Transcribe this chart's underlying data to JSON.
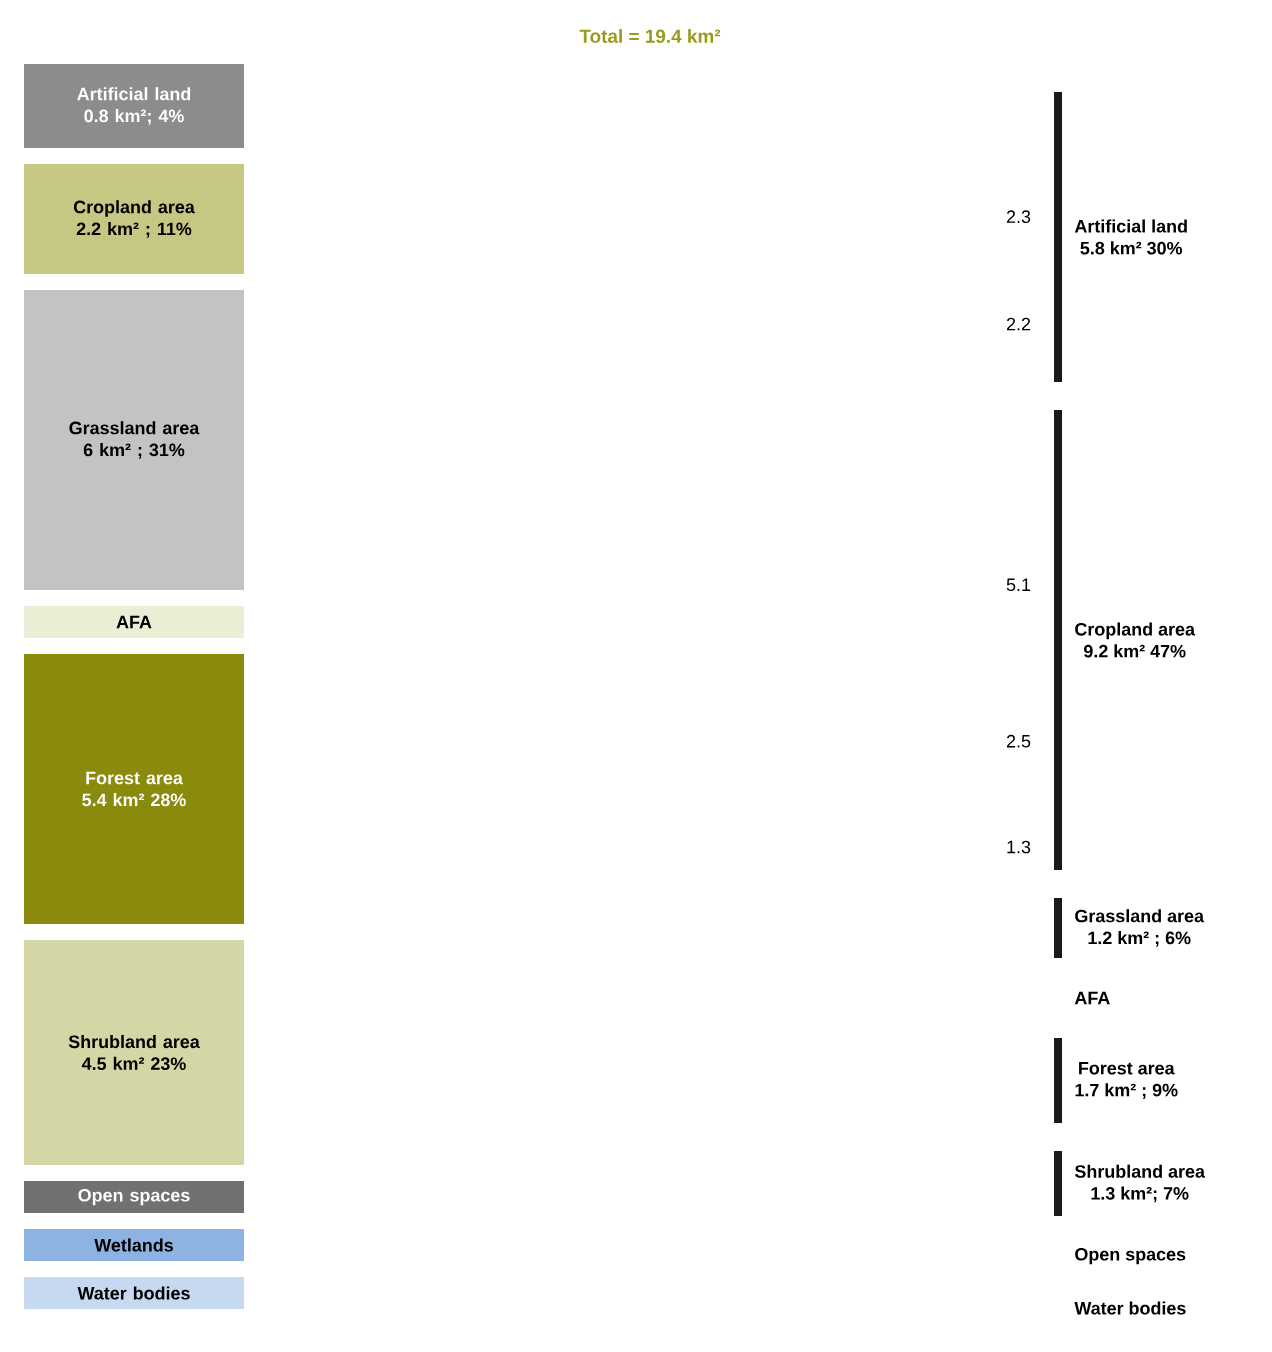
{
  "chart_data": [
    {
      "type": "other",
      "title": "Total = 19.4 km²",
      "categories": [
        "Artificial land",
        "Cropland area",
        "Grassland area",
        "AFA",
        "Forest area",
        "Shrubland area",
        "Open spaces",
        "Wetlands",
        "Water bodies"
      ],
      "values": [
        0.8,
        2.2,
        6,
        null,
        5.4,
        4.5,
        null,
        null,
        null
      ],
      "value_labels": [
        "0.8 km²; 4%",
        "2.2 km² ; 11%",
        "6 km² ; 31%",
        null,
        "5.4 km² 28%",
        "4.5 km² 23%",
        null,
        null,
        null
      ],
      "colors": [
        "#8c8c8c",
        "#c6c783",
        "#c3c3c3",
        "#ecedd5",
        "#8a8b0c",
        "#d5d6a5",
        "#717171",
        "#8db3e2",
        "#c6d9f1"
      ]
    },
    {
      "type": "other",
      "categories": [
        "Artificial land",
        "Cropland area",
        "Grassland area",
        "AFA",
        "Forest area",
        "Shrubland area",
        "Open spaces",
        "Water bodies"
      ],
      "values": [
        5.8,
        9.2,
        1.2,
        null,
        1.7,
        1.3,
        null,
        null
      ],
      "value_labels": [
        "5.8 km² 30%",
        "9.2 km² 47%",
        "1.2 km² ; 6%",
        null,
        "1.7 km² ; 9%",
        "1.3 km²; 7%",
        null,
        null
      ],
      "colors": [
        "#1a1a1a",
        "#1a1a1a",
        "#1a1a1a",
        "#1a1a1a",
        "#1a1a1a",
        "#1a1a1a",
        "#1a1a1a",
        "#1a1a1a"
      ],
      "annotations": [
        "2.3",
        "2.2",
        "5.1",
        "2.5",
        "1.3"
      ]
    }
  ]
}
